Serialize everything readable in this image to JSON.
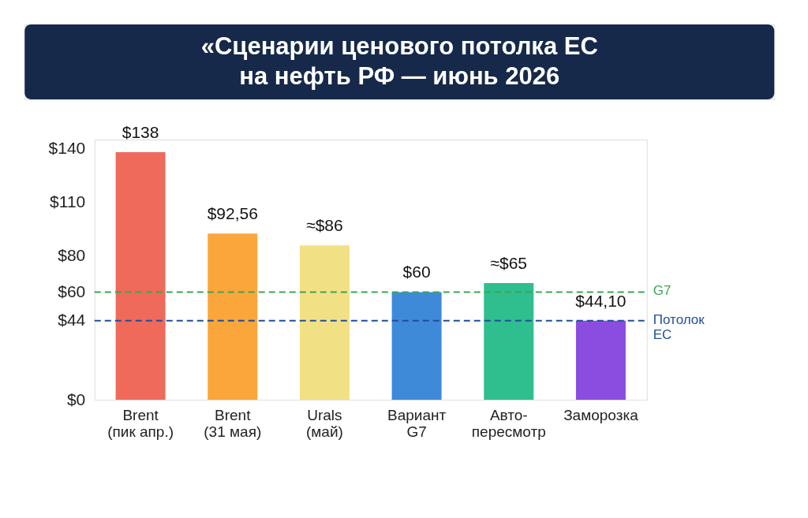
{
  "chart_data": {
    "type": "bar",
    "title": "«Сценарии ценового потолка ЕС\nна нефть РФ — июнь 2026",
    "categories": [
      "Brent\n(пик апр.)",
      "Brent\n(31 мая)",
      "Urals\n(май)",
      "Вариант\nG7",
      "Авто-\nпересмотр",
      "Заморозка"
    ],
    "values": [
      138,
      92.56,
      86,
      60,
      65,
      44.1
    ],
    "colors": [
      "#ef6a5a",
      "#fba63a",
      "#f2e184",
      "#3f8ad8",
      "#2fbf8f",
      "#8b4de0"
    ],
    "value_labels": [
      "$138",
      "$92,56",
      "≈$86",
      "$60",
      "≈$65",
      "$44,10"
    ],
    "ylim": [
      0,
      145
    ],
    "yticks": [
      {
        "value": 0,
        "label": "$0"
      },
      {
        "value": 44,
        "label": "$44"
      },
      {
        "value": 60,
        "label": "$60"
      },
      {
        "value": 80,
        "label": "$80"
      },
      {
        "value": 110,
        "label": "$110"
      },
      {
        "value": 140,
        "label": "$140"
      }
    ],
    "ref_lines": [
      {
        "axis": "y",
        "value": 60,
        "label": "G7",
        "color": "#3aa655",
        "line_style": "dashed"
      },
      {
        "axis": "y",
        "value": 44,
        "label": "Потолок ЕС",
        "color": "#1f4e9c",
        "line_style": "dashed"
      }
    ],
    "grid": false
  }
}
